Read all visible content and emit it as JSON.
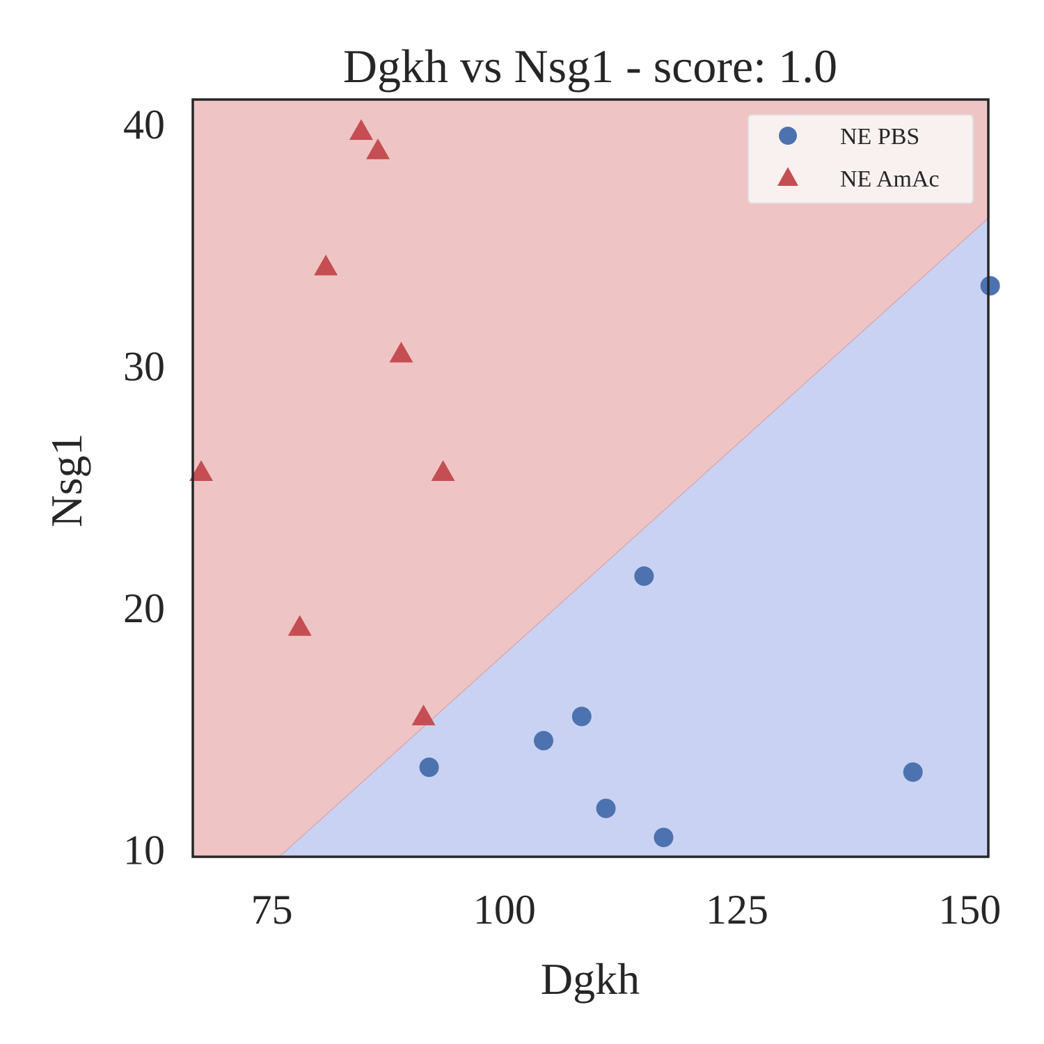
{
  "chart_data": {
    "type": "scatter",
    "title": "Dgkh vs Nsg1 - score: 1.0",
    "xlabel": "Dgkh",
    "ylabel": "Nsg1",
    "xlim": [
      66.5,
      152
    ],
    "ylim": [
      9.7,
      41
    ],
    "x_ticks": [
      75,
      100,
      125,
      150
    ],
    "y_ticks": [
      10,
      20,
      30,
      40
    ],
    "grid": false,
    "legend_position": "top-right",
    "decision_boundary": {
      "points": [
        [
          75.8,
          9.7
        ],
        [
          152,
          36.1
        ]
      ],
      "region_above": "NE AmAc",
      "region_below": "NE PBS"
    },
    "colors": {
      "pbs_marker": "#4c72b0",
      "amac_marker": "#c44e52",
      "pbs_region": "#c9d2f2",
      "amac_region": "#eec5c4",
      "axes_border": "#262626",
      "legend_background": "#f9f1f0"
    },
    "series": [
      {
        "name": "NE PBS",
        "marker": "circle",
        "points": [
          [
            91.9,
            13.4
          ],
          [
            104.2,
            14.5
          ],
          [
            108.3,
            15.5
          ],
          [
            110.9,
            11.7
          ],
          [
            115.0,
            21.3
          ],
          [
            117.1,
            10.5
          ],
          [
            143.9,
            13.2
          ],
          [
            152.2,
            33.3
          ]
        ]
      },
      {
        "name": "NE AmAc",
        "marker": "triangle",
        "points": [
          [
            67.4,
            25.6
          ],
          [
            78.0,
            19.2
          ],
          [
            80.8,
            34.1
          ],
          [
            84.6,
            39.7
          ],
          [
            86.4,
            38.9
          ],
          [
            88.9,
            30.5
          ],
          [
            91.3,
            15.5
          ],
          [
            93.4,
            25.6
          ]
        ]
      }
    ]
  }
}
